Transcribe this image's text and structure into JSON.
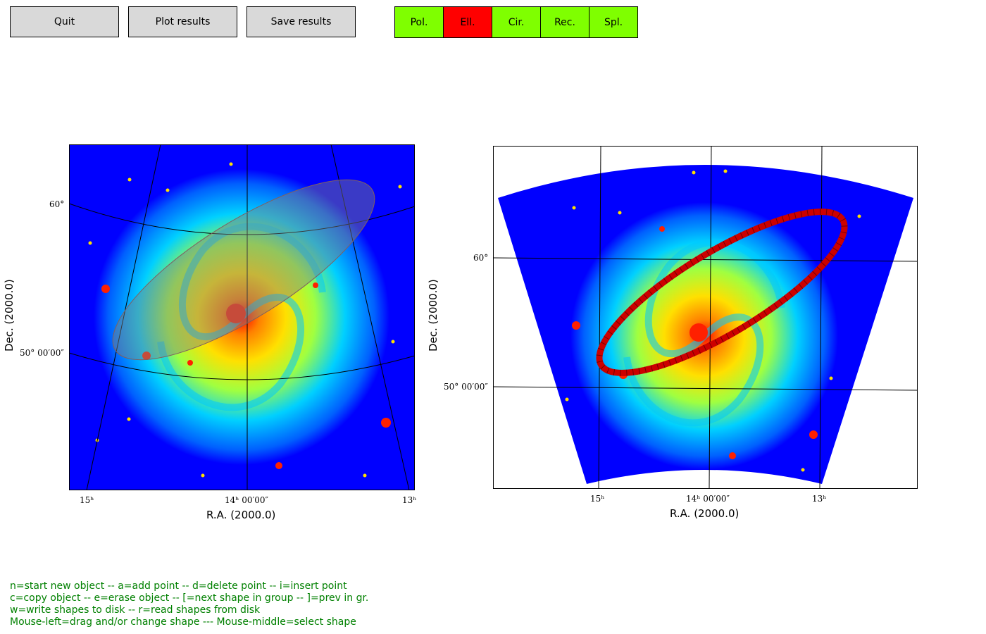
{
  "toolbar": {
    "quit_label": "Quit",
    "plot_label": "Plot results",
    "save_label": "Save results"
  },
  "shapes": [
    {
      "label": "Pol.",
      "color": "#7fff00",
      "active": false
    },
    {
      "label": "Ell.",
      "color": "#ff0000",
      "active": true
    },
    {
      "label": "Cir.",
      "color": "#7fff00",
      "active": false
    },
    {
      "label": "Rec.",
      "color": "#7fff00",
      "active": false
    },
    {
      "label": "Spl.",
      "color": "#7fff00",
      "active": false
    }
  ],
  "left_plot": {
    "xlabel": "R.A. (2000.0)",
    "ylabel": "Dec. (2000.0)",
    "xticks": [
      "15ʰ",
      "14ʰ 00′00″",
      "13ʰ"
    ],
    "yticks": [
      "60°",
      "50° 00′00″"
    ]
  },
  "right_plot": {
    "xlabel": "R.A. (2000.0)",
    "ylabel": "Dec. (2000.0)",
    "xticks": [
      "15ʰ",
      "14ʰ 00′00″",
      "13ʰ"
    ],
    "yticks": [
      "60°",
      "50° 00′00″"
    ]
  },
  "help_lines": [
    "n=start new object -- a=add point -- d=delete point -- i=insert point",
    "c=copy object -- e=erase object -- [=next shape in group -- ]=prev in gr.",
    "w=write shapes to disk -- r=read shapes from disk",
    "Mouse-left=drag and/or change shape --- Mouse-middle=select shape"
  ],
  "colors": {
    "help_text": "#008000",
    "selected_shape": "#ff0000",
    "unselected_shape": "#7fff00",
    "ellipse_marker": "#cc0000"
  }
}
